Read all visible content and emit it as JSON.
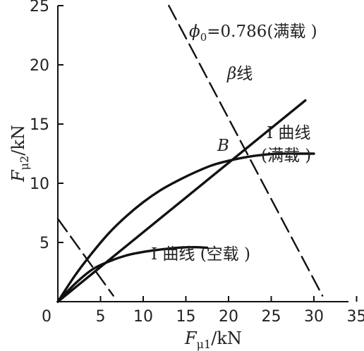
{
  "chart_data": {
    "type": "line",
    "x": {
      "label_main": "F",
      "label_sub": "μ1",
      "label_unit": "/kN",
      "ticks": [
        "0",
        "5",
        "10",
        "15",
        "20",
        "25",
        "30",
        "35"
      ],
      "range": [
        0,
        35
      ]
    },
    "y": {
      "label_main": "F",
      "label_sub": "μ2",
      "label_unit": "/kN",
      "ticks": [
        "5",
        "10",
        "15",
        "20",
        "25"
      ],
      "range": [
        0,
        25
      ]
    },
    "grid": false,
    "series": [
      {
        "name": "I 曲线（满载）",
        "style": "solid",
        "points": [
          [
            0,
            0
          ],
          [
            2,
            2.2
          ],
          [
            4,
            4.1
          ],
          [
            6,
            5.8
          ],
          [
            8,
            7.2
          ],
          [
            10,
            8.4
          ],
          [
            12,
            9.4
          ],
          [
            14,
            10.2
          ],
          [
            16,
            10.9
          ],
          [
            18,
            11.5
          ],
          [
            20,
            11.9
          ],
          [
            22,
            12.2
          ],
          [
            24,
            12.4
          ],
          [
            26,
            12.5
          ],
          [
            28,
            12.5
          ],
          [
            30,
            12.5
          ]
        ]
      },
      {
        "name": "I 曲线 (空载)",
        "style": "solid",
        "points": [
          [
            0,
            0
          ],
          [
            2,
            1.5
          ],
          [
            4,
            2.7
          ],
          [
            6,
            3.4
          ],
          [
            8,
            3.9
          ],
          [
            10,
            4.2
          ],
          [
            12,
            4.4
          ],
          [
            14,
            4.55
          ],
          [
            16,
            4.6
          ],
          [
            17.5,
            4.55
          ]
        ]
      },
      {
        "name": "β线",
        "style": "solid",
        "points": [
          [
            0,
            0
          ],
          [
            29,
            17
          ]
        ]
      },
      {
        "name": "φ0=0.786（满载）",
        "style": "dash",
        "points": [
          [
            13,
            25
          ],
          [
            31,
            0.5
          ]
        ]
      },
      {
        "name": "",
        "style": "dash",
        "points": [
          [
            0,
            7
          ],
          [
            6.5,
            0.5
          ]
        ]
      }
    ],
    "annotations": {
      "phi_main": "ϕ",
      "phi_sub": "0",
      "phi_text": "=0.786(满载 )",
      "beta_main": "β",
      "beta_text": "线",
      "curve_full_line1": "I 曲线",
      "curve_full_line2": "(满载 )",
      "curve_empty": "I  曲线 (空载 )",
      "point_b": "B"
    }
  }
}
